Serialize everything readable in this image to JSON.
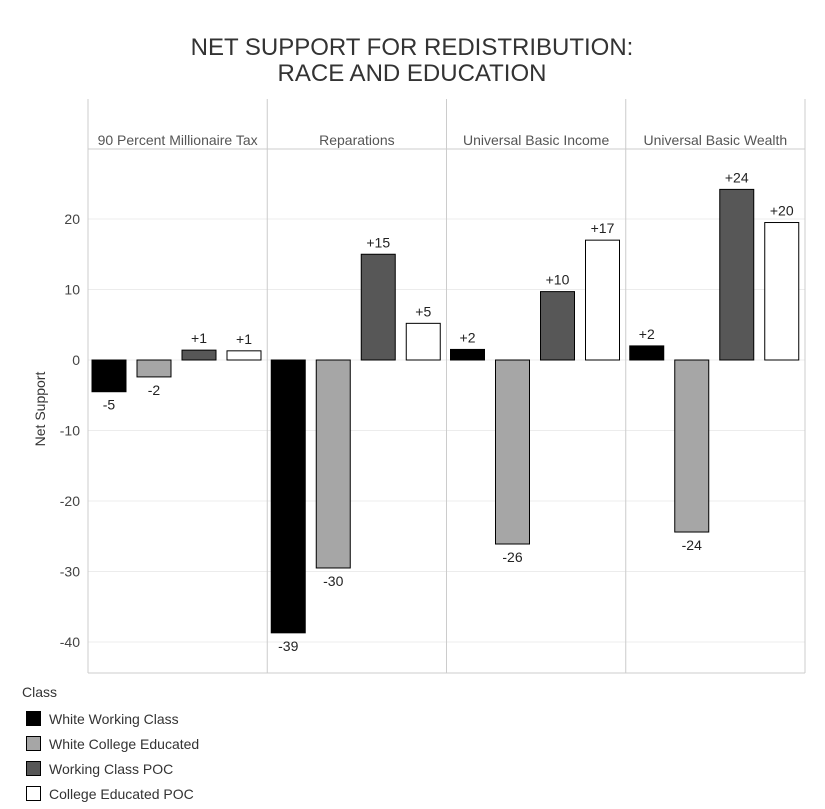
{
  "chart_data": {
    "type": "bar",
    "title": "NET SUPPORT FOR REDISTRIBUTION:",
    "subtitle": "RACE AND EDUCATION",
    "ylabel": "Net Support",
    "xlabel": "",
    "ylim": [
      -44,
      30
    ],
    "yticks": [
      20,
      10,
      0,
      -10,
      -20,
      -30,
      -40
    ],
    "grid": true,
    "legend_position": "bottom-left",
    "facets": [
      "90 Percent Millionaire Tax",
      "Reparations",
      "Universal Basic Income",
      "Universal Basic Wealth"
    ],
    "legend_title": "Class",
    "series": [
      {
        "name": "White Working Class",
        "color": "#000000",
        "values": [
          -4.5,
          -38.7,
          1.5,
          2.0
        ],
        "labels": [
          "-5",
          "-39",
          "+2",
          "+2"
        ]
      },
      {
        "name": "White College Educated",
        "color": "#a6a6a6",
        "values": [
          -2.4,
          -29.5,
          -26.1,
          -24.4
        ],
        "labels": [
          "-2",
          "-30",
          "-26",
          "-24"
        ]
      },
      {
        "name": "Working Class POC",
        "color": "#575757",
        "values": [
          1.4,
          15.0,
          9.7,
          24.2
        ],
        "labels": [
          "+1",
          "+15",
          "+10",
          "+24"
        ]
      },
      {
        "name": "College Educated POC",
        "color": "#ffffff",
        "values": [
          1.3,
          5.2,
          17.0,
          19.5
        ],
        "labels": [
          "+1",
          "+5",
          "+17",
          "+20"
        ]
      }
    ]
  }
}
